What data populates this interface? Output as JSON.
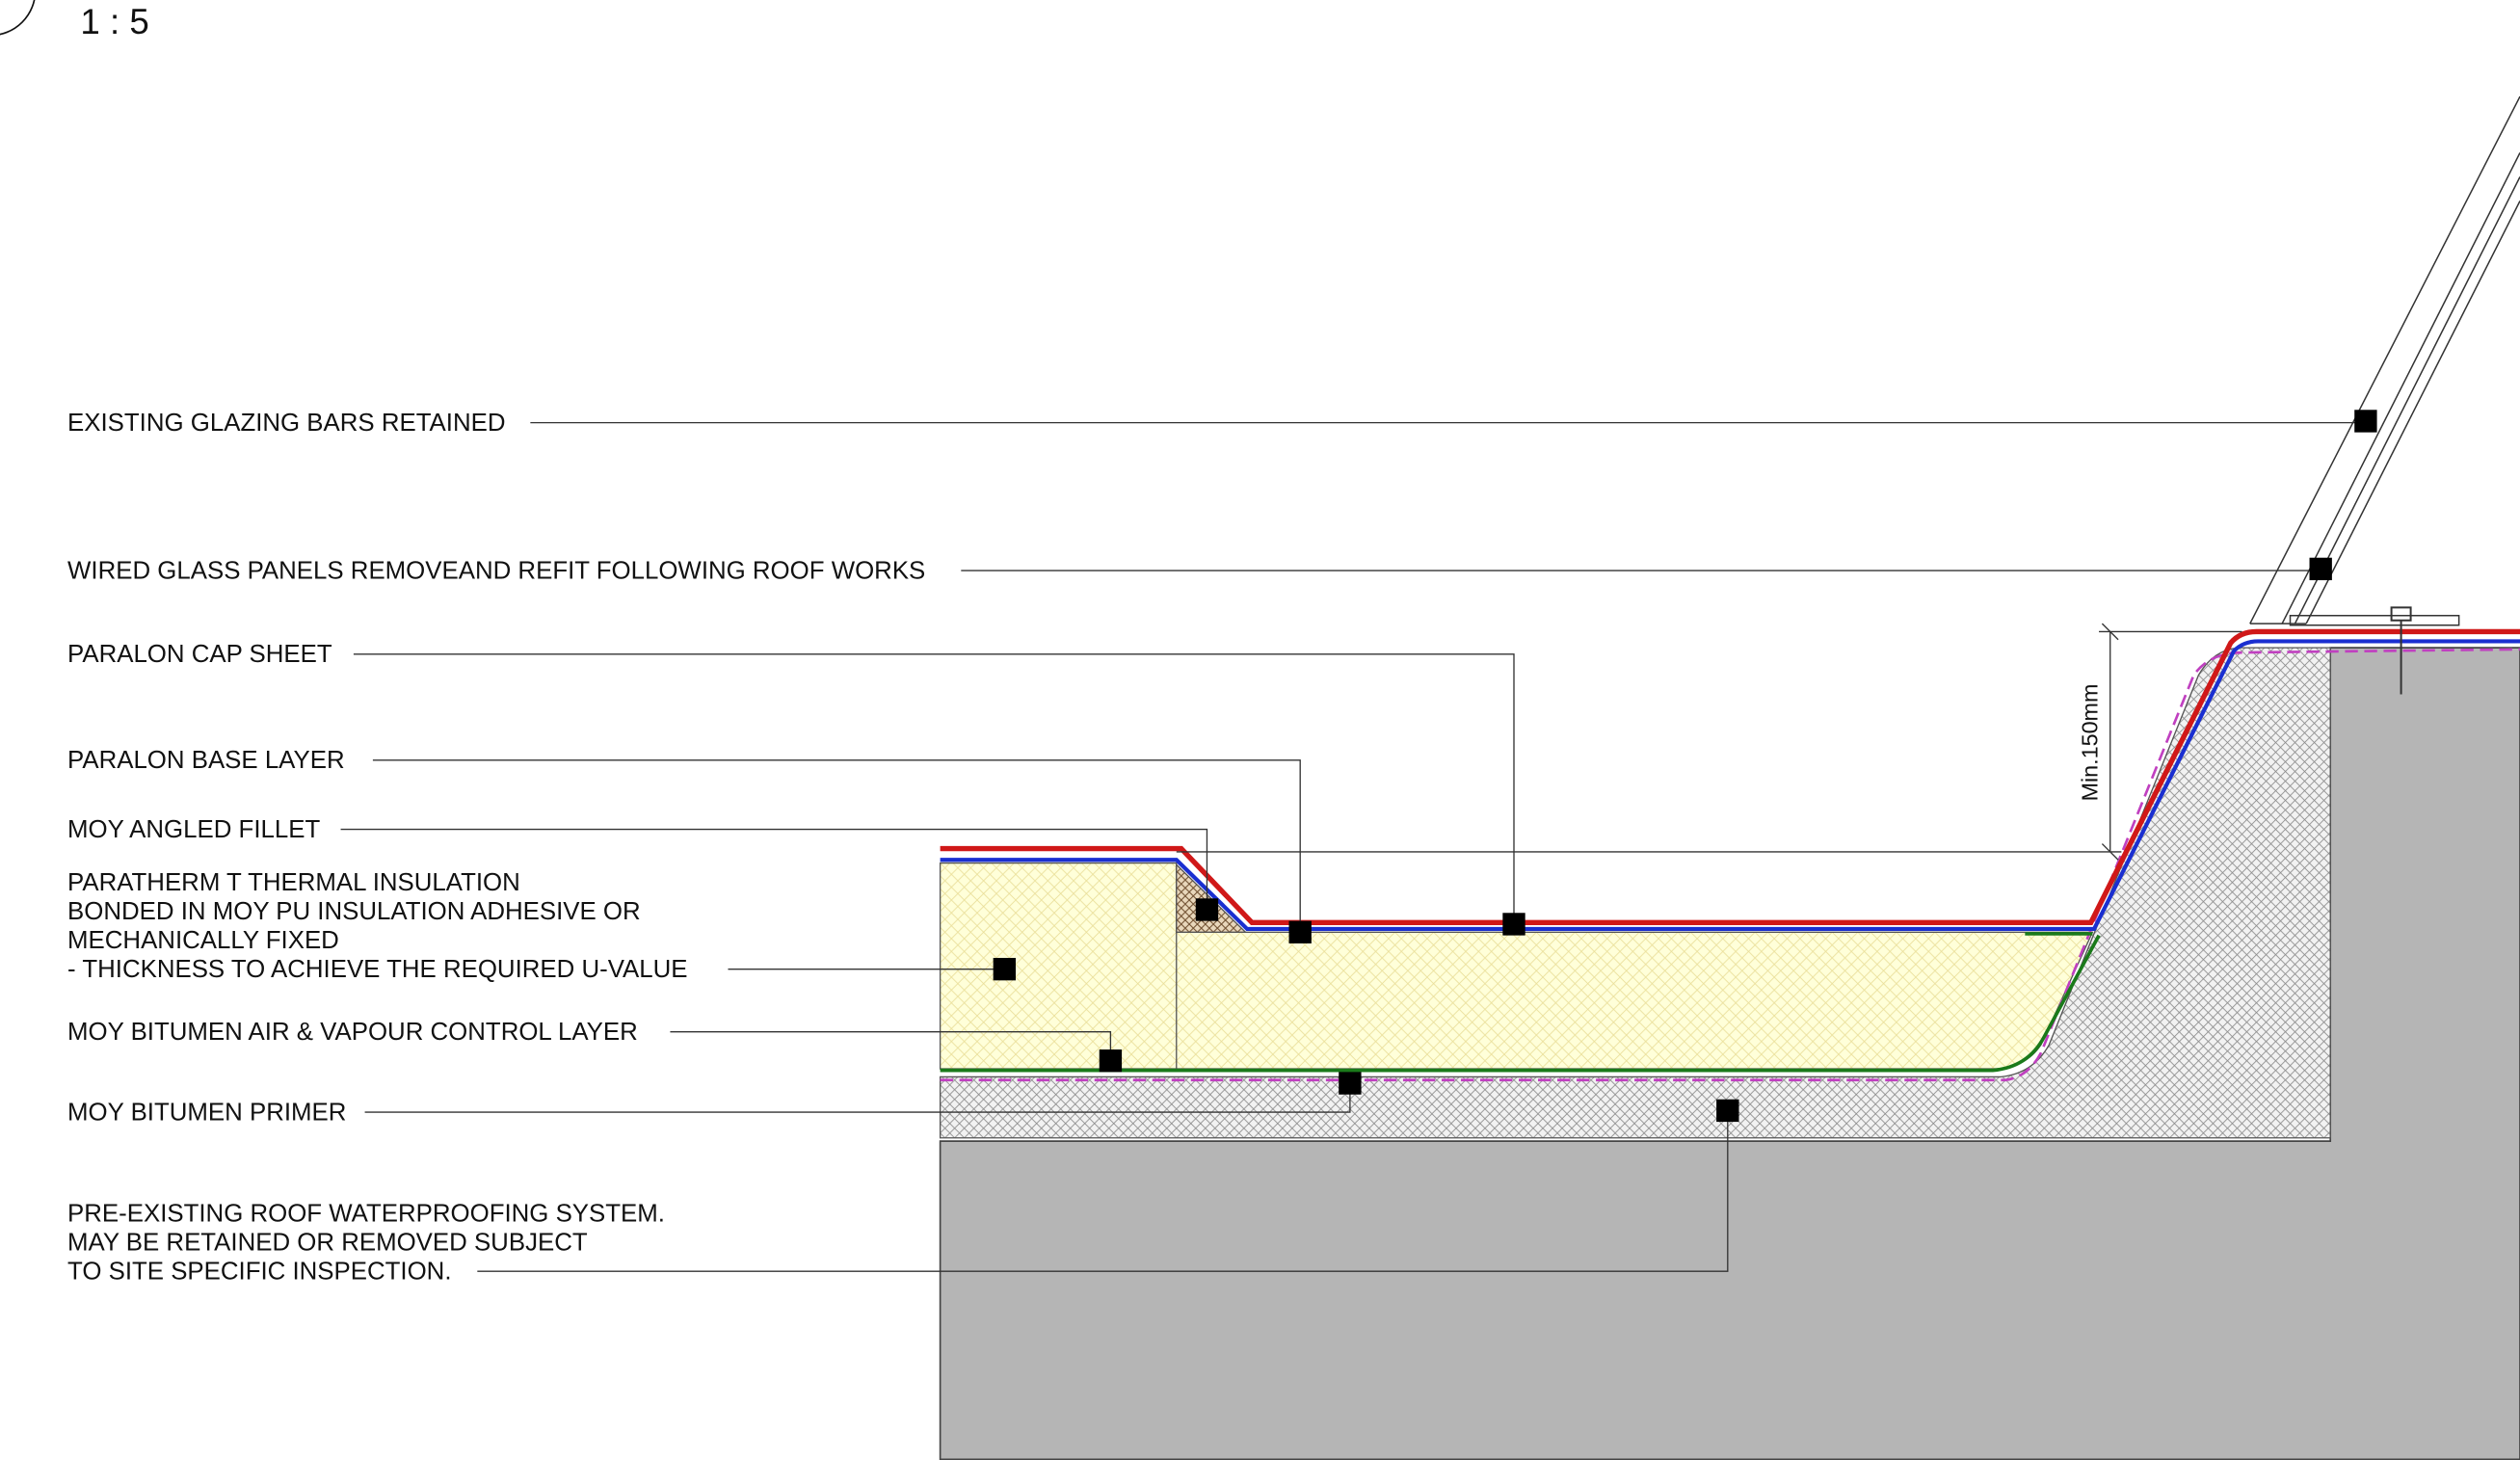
{
  "scale": "1 : 5",
  "dimension": "Min.150mm",
  "labels": [
    {
      "lines": [
        "EXISTING GLAZING BARS RETAINED"
      ]
    },
    {
      "lines": [
        "WIRED GLASS PANELS REMOVEAND REFIT FOLLOWING ROOF WORKS"
      ]
    },
    {
      "lines": [
        "PARALON CAP SHEET"
      ]
    },
    {
      "lines": [
        "PARALON BASE LAYER"
      ]
    },
    {
      "lines": [
        "MOY ANGLED FILLET"
      ]
    },
    {
      "lines": [
        "PARATHERM T THERMAL INSULATION",
        "BONDED IN MOY PU INSULATION ADHESIVE OR",
        "MECHANICALLY FIXED",
        "- THICKNESS TO ACHIEVE THE REQUIRED U-VALUE"
      ]
    },
    {
      "lines": [
        "MOY BITUMEN AIR & VAPOUR CONTROL LAYER"
      ]
    },
    {
      "lines": [
        "MOY BITUMEN PRIMER"
      ]
    },
    {
      "lines": [
        "PRE-EXISTING ROOF WATERPROOFING SYSTEM.",
        "MAY BE RETAINED OR REMOVED SUBJECT",
        "TO SITE SPECIFIC INSPECTION."
      ]
    }
  ]
}
